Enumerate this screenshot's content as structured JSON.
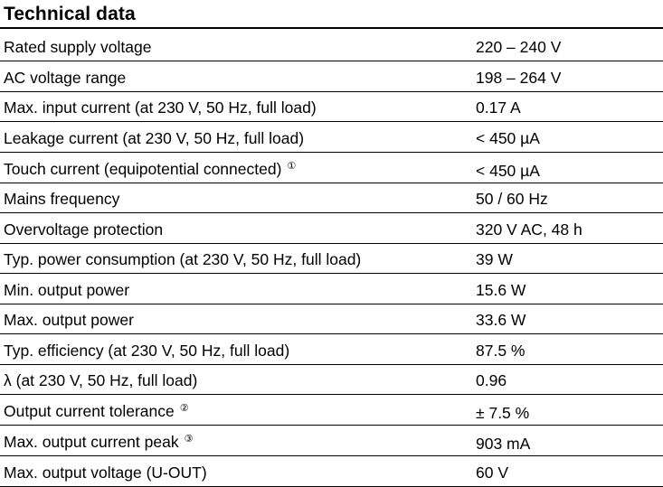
{
  "title": "Technical data",
  "rows": [
    {
      "label": "Rated supply voltage",
      "note": "",
      "value": "220 – 240 V"
    },
    {
      "label": "AC voltage range",
      "note": "",
      "value": "198 – 264 V"
    },
    {
      "label": "Max. input current (at 230 V, 50 Hz, full load)",
      "note": "",
      "value": "0.17 A"
    },
    {
      "label": "Leakage current (at 230 V, 50 Hz, full load)",
      "note": "",
      "value": "< 450 µA"
    },
    {
      "label": "Touch current (equipotential connected)",
      "note": "①",
      "value": "< 450 µA"
    },
    {
      "label": "Mains frequency",
      "note": "",
      "value": "50 / 60 Hz"
    },
    {
      "label": "Overvoltage protection",
      "note": "",
      "value": "320 V AC, 48 h"
    },
    {
      "label": "Typ. power consumption (at 230 V, 50 Hz, full load)",
      "note": "",
      "value": "39 W"
    },
    {
      "label": "Min. output power",
      "note": "",
      "value": "15.6 W"
    },
    {
      "label": "Max. output power",
      "note": "",
      "value": "33.6 W"
    },
    {
      "label": "Typ. efficiency (at 230 V, 50 Hz, full load)",
      "note": "",
      "value": "87.5 %"
    },
    {
      "label": "λ (at 230 V, 50 Hz, full load)",
      "note": "",
      "value": "0.96"
    },
    {
      "label": "Output current tolerance",
      "note": "②",
      "value": "± 7.5 %"
    },
    {
      "label": "Max. output current peak",
      "note": "③",
      "value": "903 mA"
    },
    {
      "label": "Max. output voltage (U-OUT)",
      "note": "",
      "value": "60 V"
    }
  ]
}
